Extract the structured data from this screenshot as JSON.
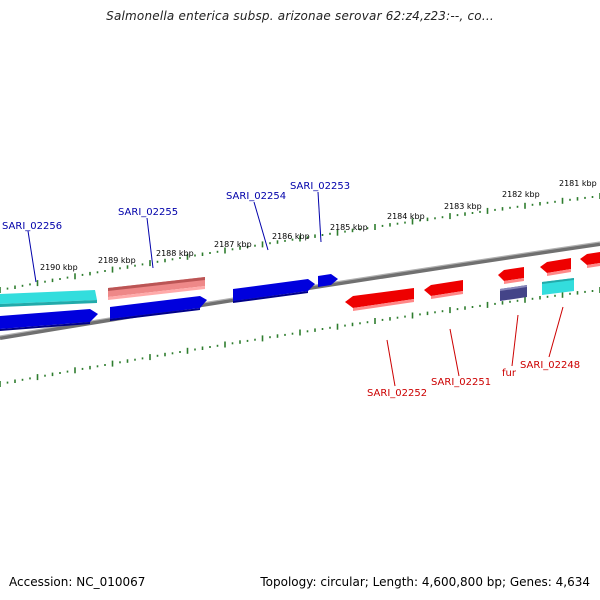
{
  "title": "Salmonella enterica subsp. arizonae serovar 62:z4,z23:--, co...",
  "scale_labels": [
    "2190 kbp",
    "2189 kbp",
    "2188 kbp",
    "2187 kbp",
    "2186 kbp",
    "2185 kbp",
    "2184 kbp",
    "2183 kbp",
    "2182 kbp",
    "2181 kbp"
  ],
  "gene_labels_top": [
    "SARI_02256",
    "SARI_02255",
    "SARI_02254",
    "SARI_02253"
  ],
  "gene_labels_bottom": [
    "SARI_02252",
    "SARI_02251",
    "fur",
    "SARI_02248"
  ],
  "footer": {
    "accession": "Accession: NC_010067",
    "stats": "Topology: circular; Length: 4,600,800 bp; Genes: 4,634"
  },
  "colors": {
    "forward_cds": "#0000dd",
    "reverse_cds": "#ee0000",
    "cyan_feature": "#33dddd",
    "pink_feature": "#ee8888",
    "purple_feature": "#444488",
    "backbone": "#888888",
    "tick": "#2e7d2e",
    "top_label": "#0000aa",
    "bottom_label": "#cc0000"
  }
}
